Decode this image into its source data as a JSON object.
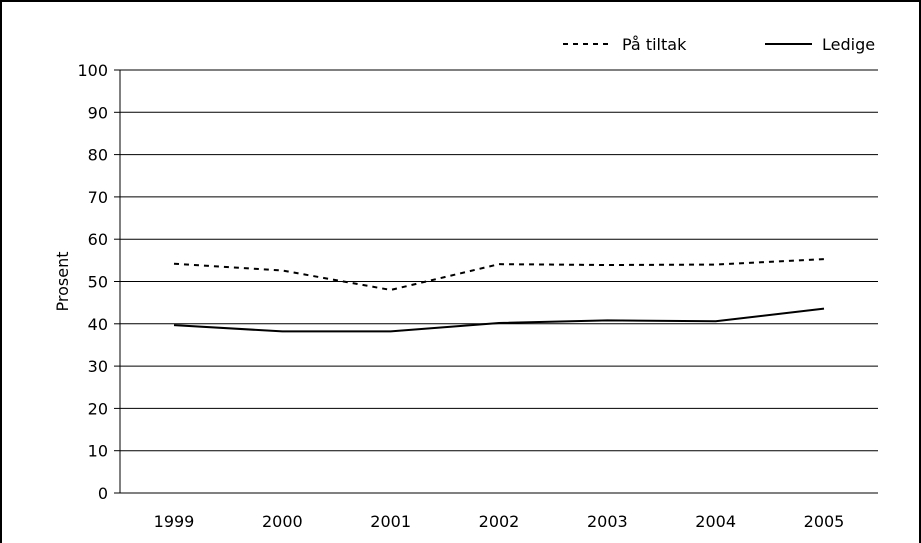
{
  "chart_data": {
    "type": "line",
    "categories": [
      "1999",
      "2000",
      "2001",
      "2002",
      "2003",
      "2004",
      "2005"
    ],
    "series": [
      {
        "name": "På tiltak",
        "values": [
          54.2,
          52.6,
          48.0,
          54.1,
          53.9,
          54.0,
          55.3
        ],
        "style": "dashed",
        "color": "#000000"
      },
      {
        "name": "Ledige",
        "values": [
          39.7,
          38.2,
          38.2,
          40.2,
          40.8,
          40.6,
          43.6
        ],
        "style": "solid",
        "color": "#000000"
      }
    ],
    "ylabel": "Prosent",
    "ylim": [
      0,
      100
    ],
    "yticks": [
      0,
      10,
      20,
      30,
      40,
      50,
      60,
      70,
      80,
      90,
      100
    ],
    "grid": true,
    "legend_position": "top-right"
  }
}
